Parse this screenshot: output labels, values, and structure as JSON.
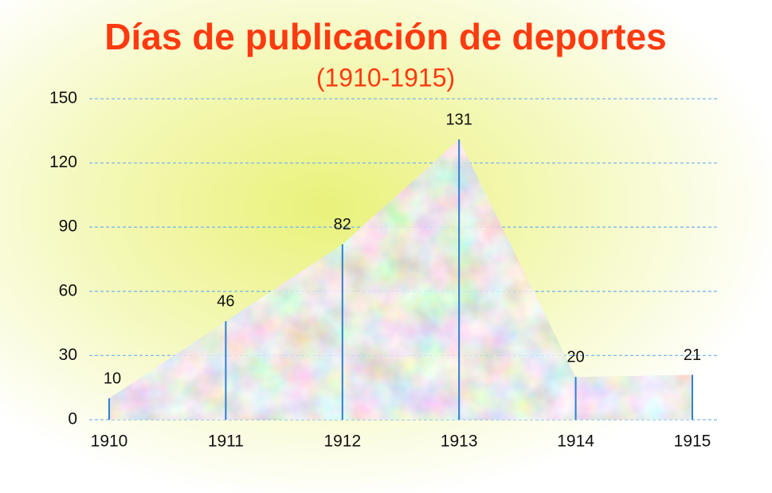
{
  "chart_data": {
    "type": "area",
    "title": "Días de publicación de deportes",
    "subtitle": "(1910-1915)",
    "x": [
      1910,
      1911,
      1912,
      1913,
      1914,
      1915
    ],
    "values": [
      10,
      46,
      82,
      131,
      20,
      21
    ],
    "color": "#2f7fd0",
    "xlim": [
      1910,
      1915
    ],
    "xticks": [
      1910,
      1911,
      1912,
      1913,
      1914,
      1915
    ],
    "ylim": [
      0,
      150
    ],
    "yticks": [
      0,
      30,
      60,
      90,
      120,
      150
    ],
    "grid": true
  }
}
